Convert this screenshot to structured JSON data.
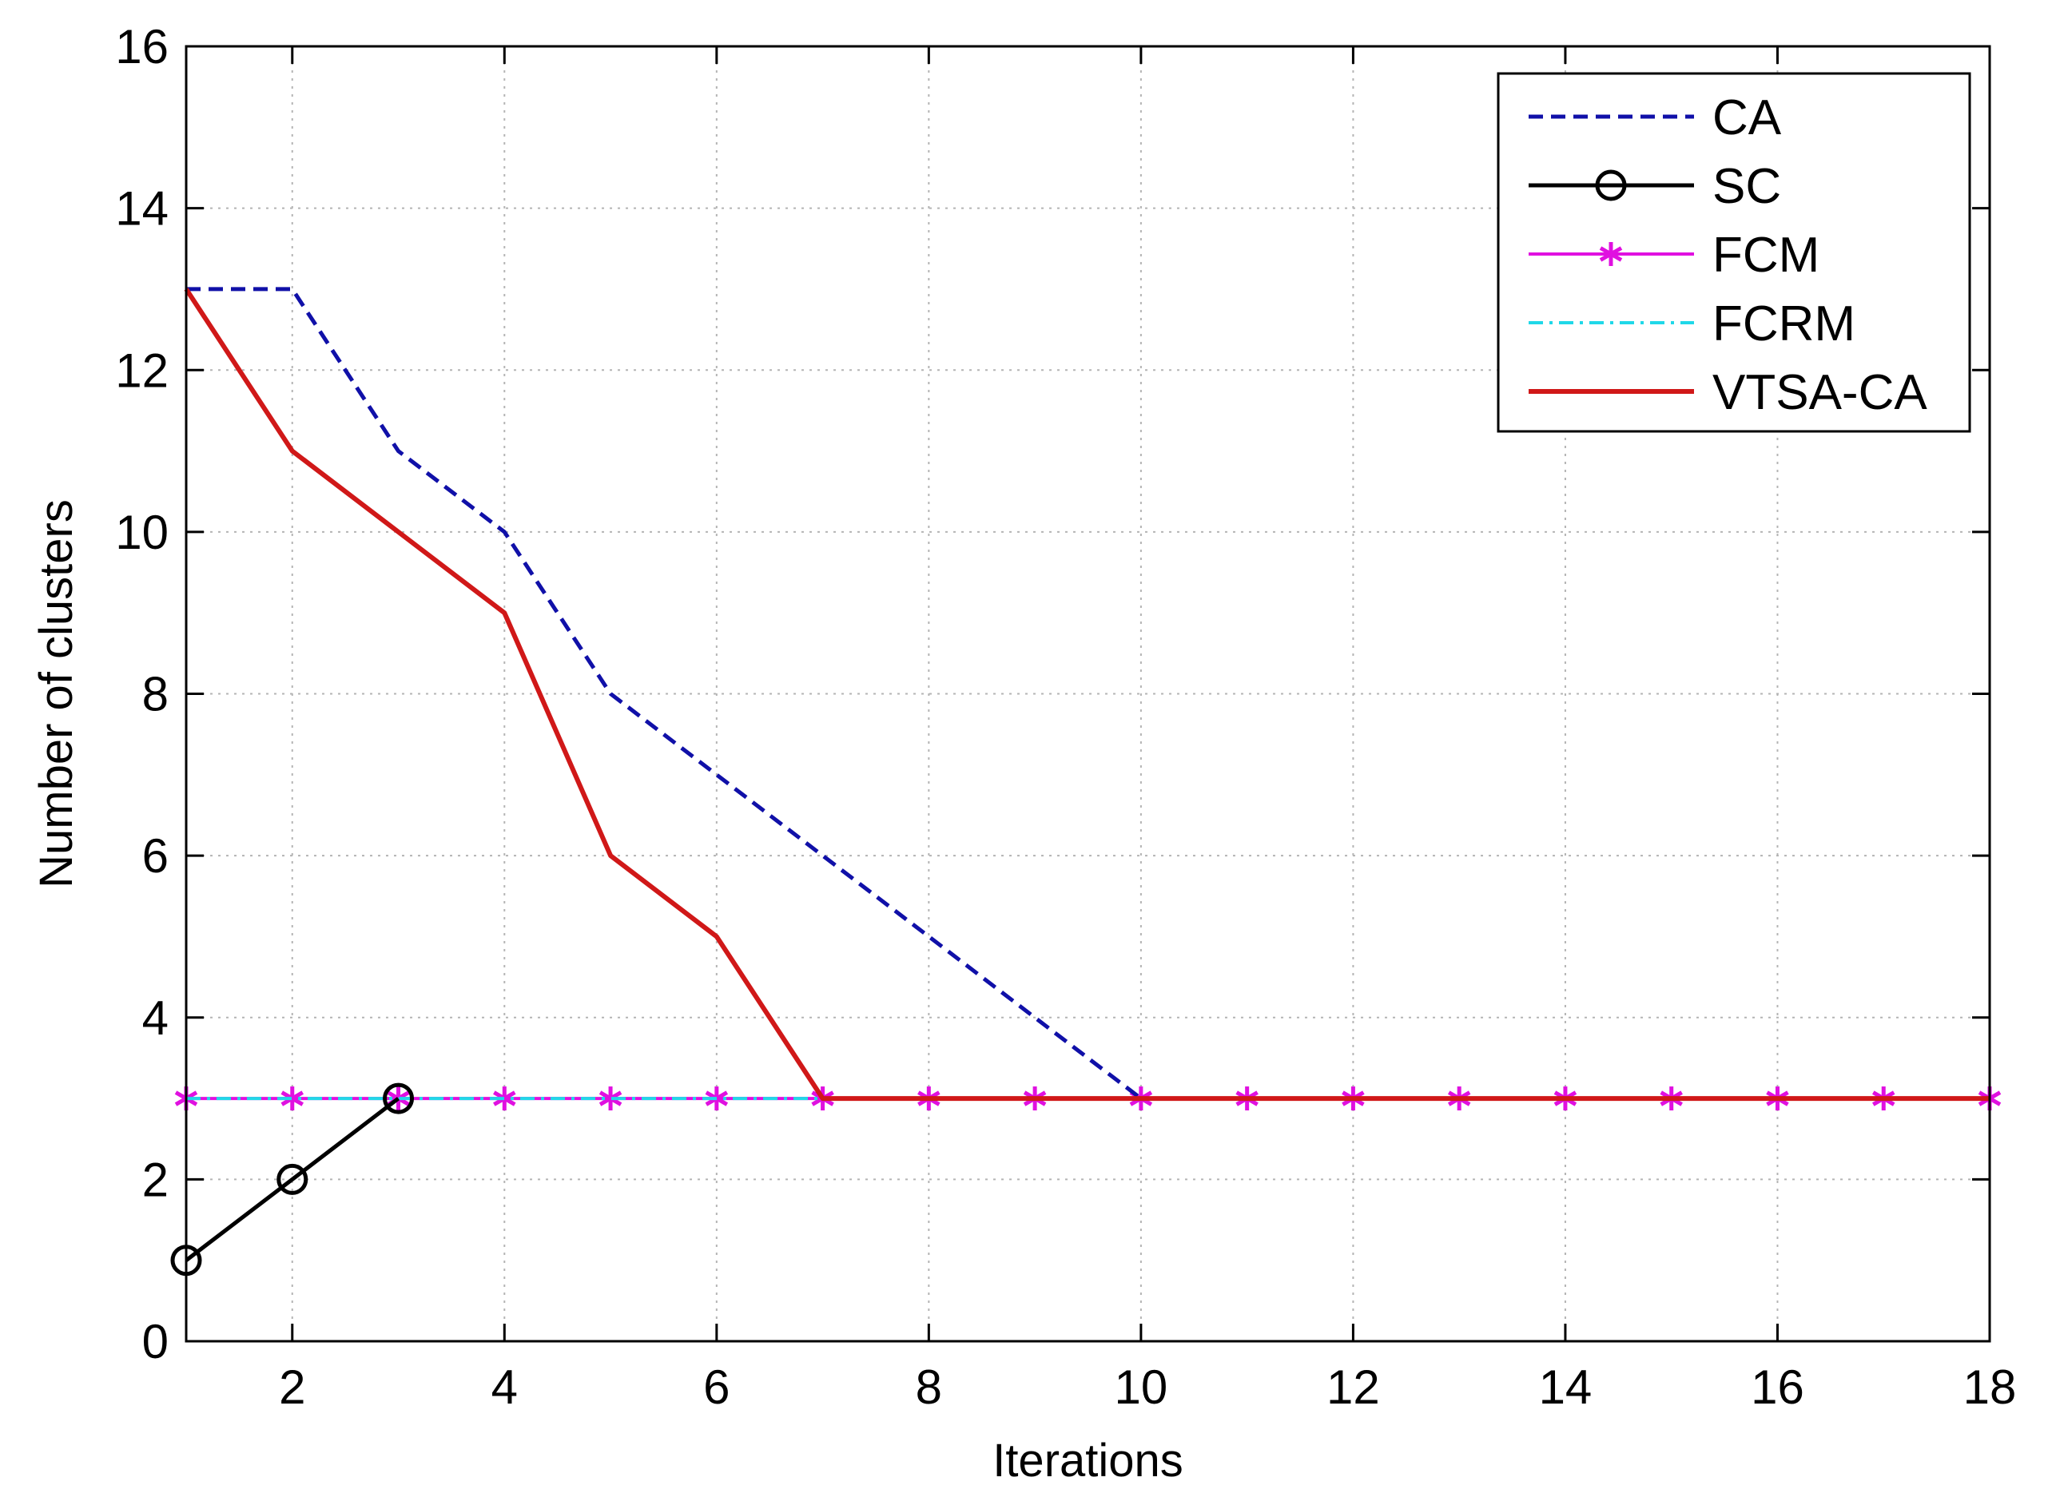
{
  "chart_data": {
    "type": "line",
    "title": "",
    "xlabel": "Iterations",
    "ylabel": "Number of clusters",
    "xlim": [
      1,
      18
    ],
    "ylim": [
      0,
      16
    ],
    "xticks": [
      2,
      4,
      6,
      8,
      10,
      12,
      14,
      16,
      18
    ],
    "yticks": [
      0,
      2,
      4,
      6,
      8,
      10,
      12,
      14,
      16
    ],
    "grid": true,
    "legend_position": "top-right",
    "series": [
      {
        "name": "CA",
        "color": "#1010a8",
        "line_style": "dashed",
        "marker": "none",
        "x": [
          1,
          2,
          3,
          4,
          5,
          6,
          7,
          8,
          9,
          10,
          11,
          12,
          13,
          14,
          15,
          16,
          17,
          18
        ],
        "y": [
          13,
          13,
          11,
          10,
          8,
          7,
          6,
          5,
          4,
          3,
          3,
          3,
          3,
          3,
          3,
          3,
          3,
          3
        ]
      },
      {
        "name": "SC",
        "color": "#000000",
        "line_style": "solid",
        "marker": "circle",
        "x": [
          1,
          2,
          3
        ],
        "y": [
          1,
          2,
          3
        ]
      },
      {
        "name": "FCM",
        "color": "#e010e0",
        "line_style": "solid",
        "marker": "asterisk",
        "x": [
          1,
          2,
          3,
          4,
          5,
          6,
          7,
          8,
          9,
          10,
          11,
          12,
          13,
          14,
          15,
          16,
          17,
          18
        ],
        "y": [
          3,
          3,
          3,
          3,
          3,
          3,
          3,
          3,
          3,
          3,
          3,
          3,
          3,
          3,
          3,
          3,
          3,
          3
        ]
      },
      {
        "name": "FCRM",
        "color": "#20d8e8",
        "line_style": "dashdot",
        "marker": "none",
        "x": [
          1,
          2,
          3,
          4,
          5,
          6,
          7
        ],
        "y": [
          3,
          3,
          3,
          3,
          3,
          3,
          3
        ]
      },
      {
        "name": "VTSA-CA",
        "color": "#d01818",
        "line_style": "solid",
        "marker": "none",
        "x": [
          1,
          2,
          3,
          4,
          5,
          6,
          7,
          8,
          9,
          10,
          11,
          12,
          13,
          14,
          15,
          16,
          17,
          18
        ],
        "y": [
          13,
          11,
          10,
          9,
          6,
          5,
          3,
          3,
          3,
          3,
          3,
          3,
          3,
          3,
          3,
          3,
          3,
          3
        ]
      }
    ]
  }
}
